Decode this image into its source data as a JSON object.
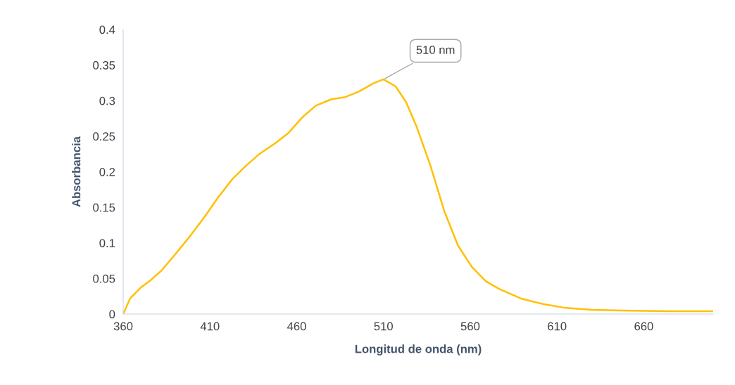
{
  "chart_data": {
    "type": "line",
    "xlabel": "Longitud de onda (nm)",
    "ylabel": "Absorbancia",
    "series": [
      {
        "color": "#ffc000",
        "x": [
          360,
          364,
          370,
          376,
          382,
          390,
          399,
          407,
          415,
          423,
          431,
          439,
          447,
          455,
          463,
          471,
          480,
          488,
          496,
          504,
          510,
          517,
          523,
          529,
          537,
          545,
          553,
          561,
          569,
          577,
          589,
          602,
          614,
          630,
          647,
          675,
          700
        ],
        "values": [
          0,
          0.022,
          0.037,
          0.048,
          0.061,
          0.084,
          0.111,
          0.137,
          0.165,
          0.19,
          0.209,
          0.226,
          0.239,
          0.254,
          0.276,
          0.293,
          0.302,
          0.305,
          0.313,
          0.324,
          0.33,
          0.32,
          0.298,
          0.264,
          0.209,
          0.145,
          0.096,
          0.066,
          0.046,
          0.035,
          0.022,
          0.014,
          0.009,
          0.006,
          0.005,
          0.004,
          0.004
        ]
      }
    ],
    "xlim": [
      360,
      700
    ],
    "xticks": [
      360,
      410,
      460,
      510,
      560,
      610,
      660
    ],
    "ylim": [
      0,
      0.4
    ],
    "yticks": [
      0,
      0.05,
      0.1,
      0.15,
      0.2,
      0.25,
      0.3,
      0.35,
      0.4
    ],
    "grid": false,
    "legend": false,
    "marker": "none",
    "line_style": "solid",
    "annotations": [
      {
        "text": "510 nm",
        "x": 510,
        "y": 0.33
      }
    ]
  }
}
